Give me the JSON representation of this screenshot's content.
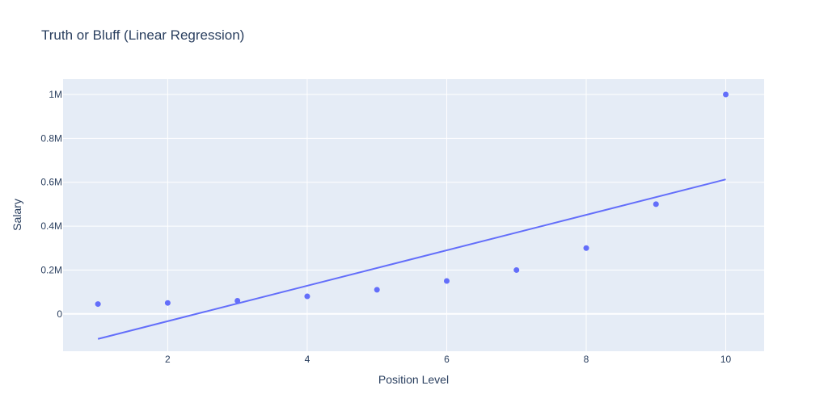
{
  "chart_data": {
    "type": "scatter",
    "title": "Truth or Bluff (Linear Regression)",
    "xlabel": "Position Level",
    "ylabel": "Salary",
    "xlim": [
      0.5,
      10.55
    ],
    "ylim": [
      -170000,
      1070000
    ],
    "x_ticks": [
      {
        "value": 2,
        "label": "2"
      },
      {
        "value": 4,
        "label": "4"
      },
      {
        "value": 6,
        "label": "6"
      },
      {
        "value": 8,
        "label": "8"
      },
      {
        "value": 10,
        "label": "10"
      }
    ],
    "y_ticks": [
      {
        "value": 0,
        "label": "0"
      },
      {
        "value": 200000,
        "label": "0.2M"
      },
      {
        "value": 400000,
        "label": "0.4M"
      },
      {
        "value": 600000,
        "label": "0.6M"
      },
      {
        "value": 800000,
        "label": "0.8M"
      },
      {
        "value": 1000000,
        "label": "1M"
      }
    ],
    "grid": true,
    "series": [
      {
        "mode": "markers",
        "color": "#636efa",
        "x": [
          1,
          2,
          3,
          4,
          5,
          6,
          7,
          8,
          9,
          10
        ],
        "y": [
          45000,
          50000,
          60000,
          80000,
          110000,
          150000,
          200000,
          300000,
          500000,
          1000000
        ]
      },
      {
        "mode": "line",
        "color": "#636efa",
        "x": [
          1,
          10
        ],
        "y": [
          -114000,
          613000
        ]
      }
    ],
    "colors": {
      "plot_bg": "#e5ecf6",
      "grid": "#ffffff",
      "text": "#2a3f5f"
    }
  }
}
